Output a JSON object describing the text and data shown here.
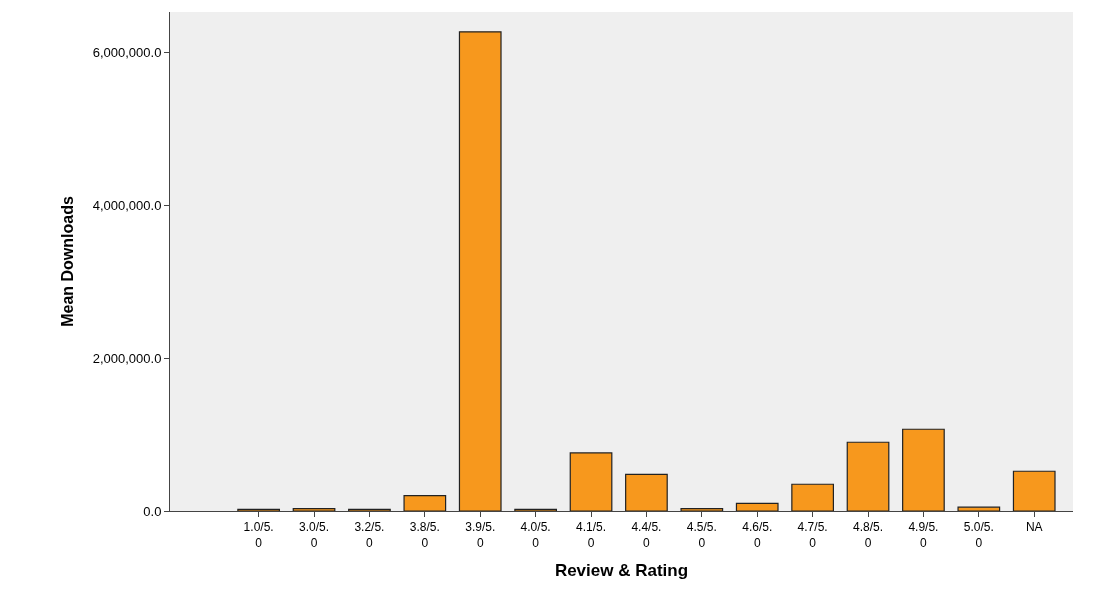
{
  "chart_data": {
    "type": "bar",
    "xlabel": "Review & Rating",
    "ylabel": "Mean Downloads",
    "categories": [
      "1.0/5.0",
      "3.0/5.0",
      "3.2/5.0",
      "3.8/5.0",
      "3.9/5.0",
      "4.0/5.0",
      "4.1/5.0",
      "4.4/5.0",
      "4.5/5.0",
      "4.6/5.0",
      "4.7/5.0",
      "4.8/5.0",
      "4.9/5.0",
      "5.0/5.0",
      "NA"
    ],
    "values": [
      20000,
      30000,
      20000,
      200000,
      6270000,
      20000,
      760000,
      480000,
      30000,
      100000,
      350000,
      900000,
      1070000,
      50000,
      520000
    ],
    "color": "#f7981d",
    "ylim": [
      0,
      6530000
    ],
    "yticks": [
      {
        "value": 0,
        "label": "0.0"
      },
      {
        "value": 2000000,
        "label": "2,000,000.0"
      },
      {
        "value": 4000000,
        "label": "4,000,000.0"
      },
      {
        "value": 6000000,
        "label": "6,000,000.0"
      }
    ],
    "grid": false,
    "legend": false
  }
}
